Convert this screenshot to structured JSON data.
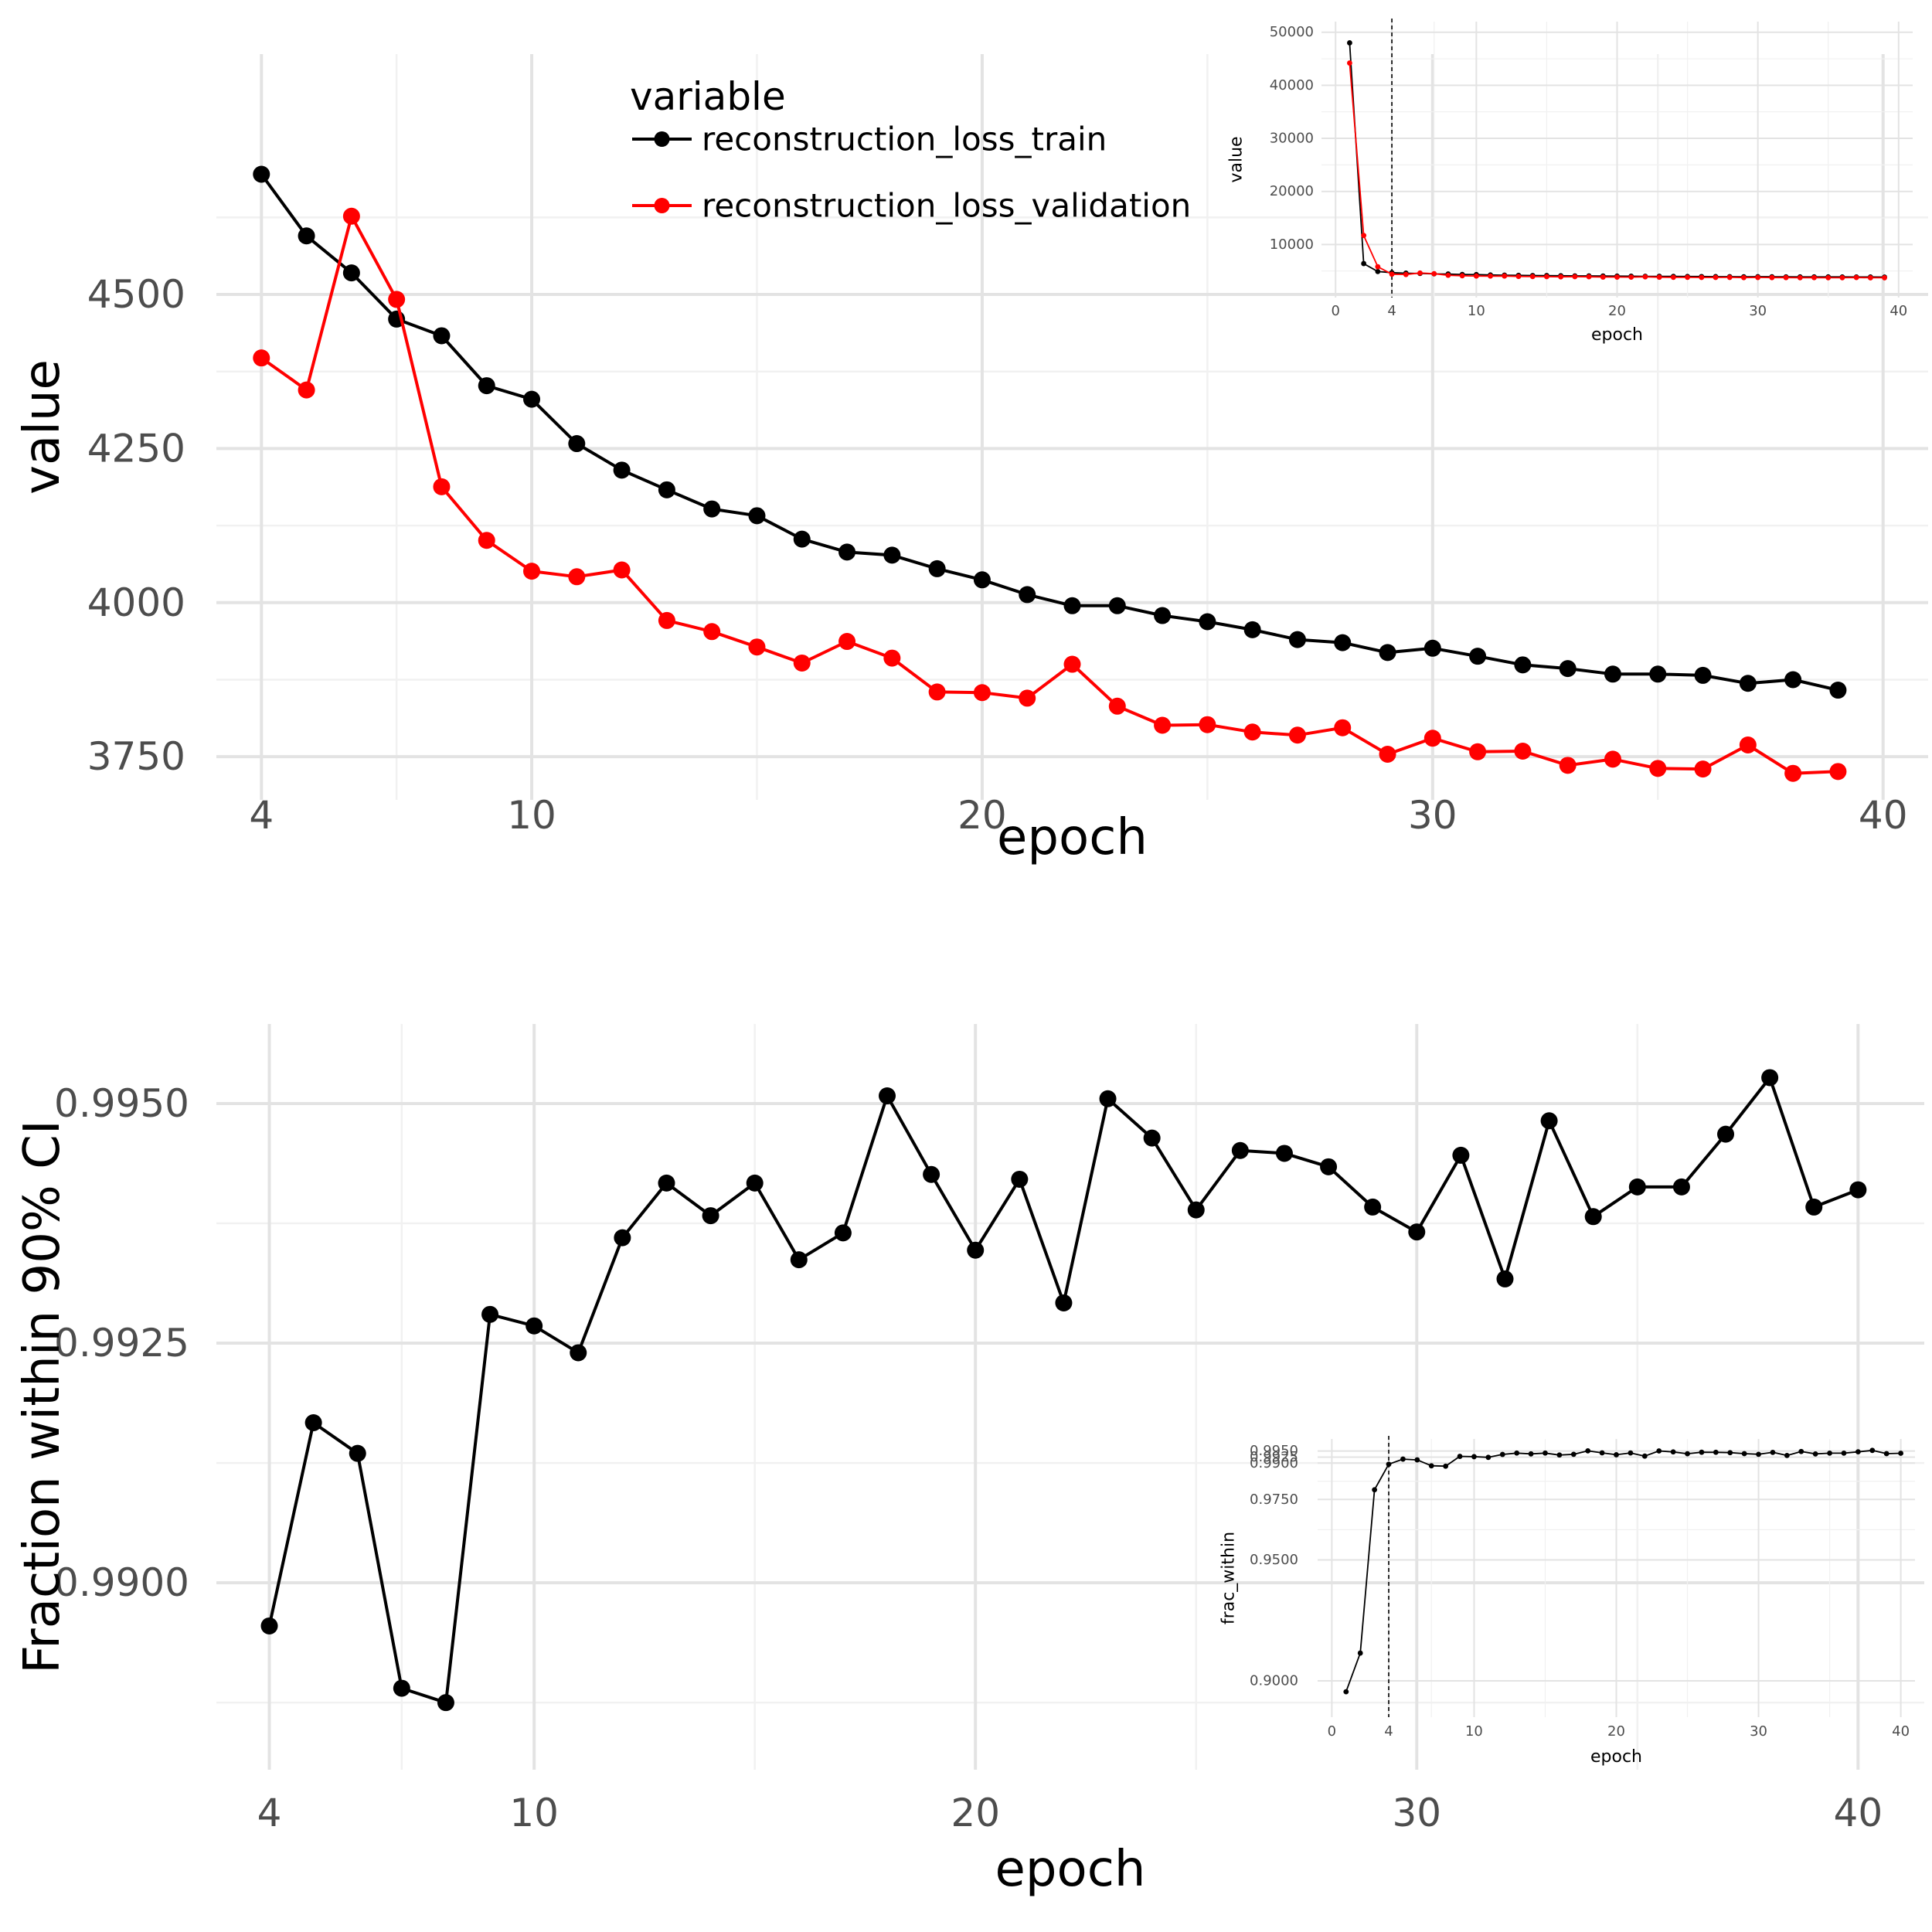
{
  "chart_data": [
    {
      "id": "top-main",
      "type": "line",
      "xlabel": "epoch",
      "ylabel": "value",
      "xlim": [
        3,
        41
      ],
      "ylim": [
        3680,
        4890
      ],
      "x_ticks": [
        4,
        10,
        20,
        30,
        40
      ],
      "x_tick_labels": [
        "4",
        "10",
        "20",
        "30",
        "40"
      ],
      "y_ticks": [
        3750,
        4000,
        4250,
        4500
      ],
      "y_tick_labels": [
        "3750",
        "4000",
        "4250",
        "4500"
      ],
      "grid": true,
      "legend": {
        "title": "variable",
        "position": "top-center"
      },
      "series": [
        {
          "name": "reconstruction_loss_train",
          "color": "#000000",
          "x": [
            4,
            5,
            6,
            7,
            8,
            9,
            10,
            11,
            12,
            13,
            14,
            15,
            16,
            17,
            18,
            19,
            20,
            21,
            22,
            23,
            24,
            25,
            26,
            27,
            28,
            29,
            30,
            31,
            32,
            33,
            34,
            35,
            36,
            37,
            38,
            39
          ],
          "y": [
            4695,
            4595,
            4535,
            4460,
            4433,
            4352,
            4330,
            4258,
            4215,
            4183,
            4152,
            4141,
            4103,
            4082,
            4077,
            4055,
            4037,
            4013,
            3995,
            3995,
            3979,
            3969,
            3956,
            3940,
            3935,
            3919,
            3926,
            3913,
            3899,
            3893,
            3884,
            3884,
            3882,
            3869,
            3875,
            3858
          ]
        },
        {
          "name": "reconstruction_loss_validation",
          "color": "#ff0000",
          "x": [
            4,
            5,
            6,
            7,
            8,
            9,
            10,
            11,
            12,
            13,
            14,
            15,
            16,
            17,
            18,
            19,
            20,
            21,
            22,
            23,
            24,
            25,
            26,
            27,
            28,
            29,
            30,
            31,
            32,
            33,
            34,
            35,
            36,
            37,
            38,
            39
          ],
          "y": [
            4397,
            4345,
            4627,
            4492,
            4188,
            4101,
            4051,
            4042,
            4053,
            3971,
            3953,
            3928,
            3902,
            3937,
            3910,
            3855,
            3854,
            3845,
            3900,
            3832,
            3801,
            3802,
            3790,
            3785,
            3797,
            3754,
            3780,
            3758,
            3759,
            3736,
            3746,
            3731,
            3730,
            3769,
            3723,
            3726
          ]
        }
      ]
    },
    {
      "id": "top-inset",
      "type": "line",
      "xlabel": "epoch",
      "ylabel": "value",
      "xlim": [
        -1,
        41
      ],
      "ylim": [
        0,
        52000
      ],
      "x_ticks": [
        0,
        4,
        10,
        20,
        30,
        40
      ],
      "x_tick_labels": [
        "0",
        "4",
        "10",
        "20",
        "30",
        "40"
      ],
      "y_ticks": [
        10000,
        20000,
        30000,
        40000,
        50000
      ],
      "y_tick_labels": [
        "10000",
        "20000",
        "30000",
        "40000",
        "50000"
      ],
      "vline_x": 4,
      "grid": true,
      "series": [
        {
          "name": "reconstruction_loss_train",
          "color": "#000000",
          "x": [
            1,
            2,
            3,
            4,
            5,
            6,
            7,
            8,
            9,
            10,
            11,
            12,
            13,
            14,
            15,
            16,
            17,
            18,
            19,
            20,
            21,
            22,
            23,
            24,
            25,
            26,
            27,
            28,
            29,
            30,
            31,
            32,
            33,
            34,
            35,
            36,
            37,
            38,
            39
          ],
          "y": [
            48000,
            6400,
            4900,
            4695,
            4595,
            4535,
            4460,
            4433,
            4352,
            4330,
            4258,
            4215,
            4183,
            4152,
            4141,
            4103,
            4082,
            4077,
            4055,
            4037,
            4013,
            3995,
            3995,
            3979,
            3969,
            3956,
            3940,
            3935,
            3919,
            3926,
            3913,
            3899,
            3893,
            3884,
            3884,
            3882,
            3869,
            3875,
            3858
          ]
        },
        {
          "name": "reconstruction_loss_validation",
          "color": "#ff0000",
          "x": [
            1,
            2,
            3,
            4,
            5,
            6,
            7,
            8,
            9,
            10,
            11,
            12,
            13,
            14,
            15,
            16,
            17,
            18,
            19,
            20,
            21,
            22,
            23,
            24,
            25,
            26,
            27,
            28,
            29,
            30,
            31,
            32,
            33,
            34,
            35,
            36,
            37,
            38,
            39
          ],
          "y": [
            44200,
            11700,
            5800,
            4397,
            4345,
            4627,
            4492,
            4188,
            4101,
            4051,
            4042,
            4053,
            3971,
            3953,
            3928,
            3902,
            3937,
            3910,
            3855,
            3854,
            3845,
            3900,
            3832,
            3801,
            3802,
            3790,
            3785,
            3797,
            3754,
            3780,
            3758,
            3759,
            3736,
            3746,
            3731,
            3730,
            3769,
            3723,
            3726
          ]
        }
      ]
    },
    {
      "id": "bottom-main",
      "type": "line",
      "xlabel": "epoch",
      "ylabel": "Fraction within 90% CI",
      "xlim": [
        2.8,
        41.5
      ],
      "ylim": [
        0.98805,
        0.99583
      ],
      "x_ticks": [
        4,
        10,
        20,
        30,
        40
      ],
      "x_tick_labels": [
        "4",
        "10",
        "20",
        "30",
        "40"
      ],
      "y_ticks": [
        0.99,
        0.9925,
        0.995
      ],
      "y_tick_labels": [
        "0.9900",
        "0.9925",
        "0.9950"
      ],
      "grid": true,
      "series": [
        {
          "name": "",
          "color": "#000000",
          "x": [
            4,
            5,
            6,
            7,
            8,
            9,
            10,
            11,
            12,
            13,
            14,
            15,
            16,
            17,
            18,
            19,
            20,
            21,
            22,
            23,
            24,
            25,
            26,
            27,
            28,
            29,
            30,
            31,
            32,
            33,
            34,
            35,
            36,
            37,
            38,
            39,
            40
          ],
          "y": [
            0.98955,
            0.99167,
            0.99135,
            0.9889,
            0.98875,
            0.9928,
            0.99268,
            0.9924,
            0.9936,
            0.99417,
            0.99383,
            0.99417,
            0.99337,
            0.99365,
            0.99508,
            0.99426,
            0.99347,
            0.99421,
            0.99292,
            0.99505,
            0.99464,
            0.99389,
            0.99451,
            0.99448,
            0.99434,
            0.99392,
            0.99366,
            0.99446,
            0.99317,
            0.99482,
            0.99382,
            0.99413,
            0.99413,
            0.99468,
            0.99527,
            0.99392,
            0.9941
          ]
        }
      ]
    },
    {
      "id": "bottom-inset",
      "type": "line",
      "xlabel": "epoch",
      "ylabel": "frac_within",
      "xlim": [
        -1,
        41
      ],
      "ylim": [
        0.885,
        1.0
      ],
      "x_ticks": [
        0,
        4,
        10,
        20,
        30,
        40
      ],
      "x_tick_labels": [
        "0",
        "4",
        "10",
        "20",
        "30",
        "40"
      ],
      "y_ticks": [
        0.9,
        0.95,
        0.975,
        0.99,
        0.9925,
        0.995
      ],
      "y_tick_labels": [
        "0.9000",
        "0.9500",
        "0.9750",
        "0.9900",
        "0.9925",
        "0.9950"
      ],
      "vline_x": 4,
      "grid": true,
      "series": [
        {
          "name": "",
          "color": "#000000",
          "x": [
            1,
            2,
            3,
            4,
            5,
            6,
            7,
            8,
            9,
            10,
            11,
            12,
            13,
            14,
            15,
            16,
            17,
            18,
            19,
            20,
            21,
            22,
            23,
            24,
            25,
            26,
            27,
            28,
            29,
            30,
            31,
            32,
            33,
            34,
            35,
            36,
            37,
            38,
            39,
            40
          ],
          "y": [
            0.8955,
            0.9115,
            0.979,
            0.98955,
            0.99167,
            0.99135,
            0.9889,
            0.98875,
            0.9928,
            0.99268,
            0.9924,
            0.9936,
            0.99417,
            0.99383,
            0.99417,
            0.99337,
            0.99365,
            0.99508,
            0.99426,
            0.99347,
            0.99421,
            0.99292,
            0.99505,
            0.99464,
            0.99389,
            0.99451,
            0.99448,
            0.99434,
            0.99392,
            0.99366,
            0.99446,
            0.99317,
            0.99482,
            0.99382,
            0.99413,
            0.99413,
            0.99468,
            0.99527,
            0.99392,
            0.9941
          ]
        }
      ]
    }
  ]
}
